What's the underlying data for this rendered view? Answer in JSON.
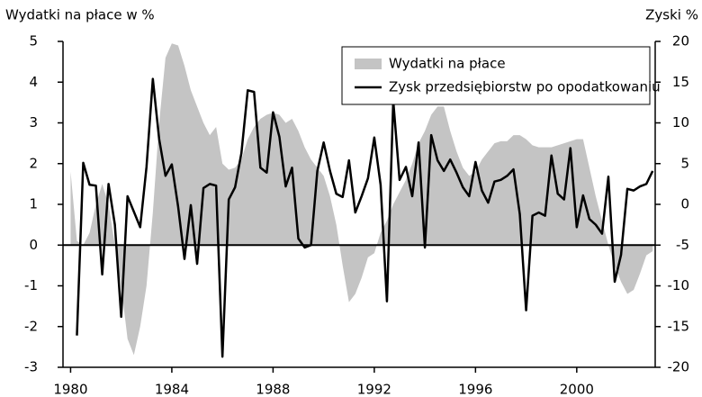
{
  "chart_data": {
    "type": "combo",
    "ylabel": "Wydatki na płace w %",
    "y2label": "Zyski %",
    "x": [
      1980,
      1980.25,
      1980.5,
      1980.75,
      1981,
      1981.25,
      1981.5,
      1981.75,
      1982,
      1982.25,
      1982.5,
      1982.75,
      1983,
      1983.25,
      1983.5,
      1983.75,
      1984,
      1984.25,
      1984.5,
      1984.75,
      1985,
      1985.25,
      1985.5,
      1985.75,
      1986,
      1986.25,
      1986.5,
      1986.75,
      1987,
      1987.25,
      1987.5,
      1987.75,
      1988,
      1988.25,
      1988.5,
      1988.75,
      1989,
      1989.25,
      1989.5,
      1989.75,
      1990,
      1990.25,
      1990.5,
      1990.75,
      1991,
      1991.25,
      1991.5,
      1991.75,
      1992,
      1992.25,
      1992.5,
      1992.75,
      1993,
      1993.25,
      1993.5,
      1993.75,
      1994,
      1994.25,
      1994.5,
      1994.75,
      1995,
      1995.25,
      1995.5,
      1995.75,
      1996,
      1996.25,
      1996.5,
      1996.75,
      1997,
      1997.25,
      1997.5,
      1997.75,
      1998,
      1998.25,
      1998.5,
      1998.75,
      1999,
      1999.25,
      1999.5,
      1999.75,
      2000,
      2000.25,
      2000.5,
      2000.75,
      2001,
      2001.25,
      2001.5,
      2001.75,
      2002,
      2002.25,
      2002.5,
      2002.75,
      2003
    ],
    "series": [
      {
        "name": "Wydatki na płace",
        "type": "area",
        "axis": "y",
        "color": "#c4c4c4",
        "values": [
          1.8,
          0.1,
          0,
          0.3,
          1.0,
          1.5,
          1.0,
          0.0,
          -1.0,
          -2.3,
          -2.7,
          -2.0,
          -1.0,
          0.8,
          3.0,
          4.6,
          4.95,
          4.9,
          4.4,
          3.8,
          3.4,
          3.0,
          2.7,
          2.9,
          2.0,
          1.85,
          1.9,
          2.1,
          2.6,
          2.9,
          3.1,
          3.2,
          3.25,
          3.2,
          3.0,
          3.1,
          2.8,
          2.4,
          2.1,
          1.9,
          1.7,
          1.2,
          0.5,
          -0.5,
          -1.4,
          -1.2,
          -0.8,
          -0.3,
          -0.2,
          0.3,
          0.6,
          1.0,
          1.3,
          1.6,
          2.0,
          2.5,
          2.8,
          3.2,
          3.4,
          3.4,
          2.8,
          2.3,
          1.9,
          1.7,
          1.8,
          2.1,
          2.3,
          2.5,
          2.55,
          2.55,
          2.7,
          2.7,
          2.6,
          2.45,
          2.4,
          2.4,
          2.4,
          2.45,
          2.5,
          2.55,
          2.6,
          2.6,
          1.9,
          1.2,
          0.6,
          0.0,
          -0.5,
          -0.9,
          -1.2,
          -1.1,
          -0.7,
          -0.25,
          -0.15
        ]
      },
      {
        "name": "Zysk przedsiębiorstw po opodatkowaniu",
        "type": "line",
        "axis": "y2",
        "color": "#000000",
        "values": [
          null,
          -16.1,
          5.1,
          2.4,
          2.3,
          -8.6,
          2.5,
          -2.5,
          -13.8,
          1.0,
          -0.9,
          -2.8,
          4.6,
          15.4,
          8.0,
          3.5,
          4.9,
          -0.3,
          -6.7,
          -0.1,
          -7.3,
          2.0,
          2.5,
          2.3,
          -18.7,
          0.6,
          2.1,
          6.3,
          14.0,
          13.8,
          4.5,
          3.9,
          11.3,
          8.3,
          2.2,
          4.5,
          -4.2,
          -5.3,
          -5.0,
          4.1,
          7.6,
          4.1,
          1.3,
          0.9,
          5.4,
          -1.0,
          1.0,
          3.2,
          8.2,
          2.4,
          -11.9,
          12.7,
          3.0,
          4.6,
          1.0,
          7.6,
          -5.3,
          8.5,
          5.4,
          4.1,
          5.5,
          3.9,
          2.1,
          1.0,
          5.2,
          1.7,
          0.2,
          2.8,
          3.0,
          3.5,
          4.3,
          -1.2,
          -13.0,
          -1.4,
          -1.0,
          -1.4,
          6.0,
          1.3,
          0.6,
          6.9,
          -2.8,
          1.1,
          -1.8,
          -2.5,
          -3.6,
          3.4,
          -9.5,
          -6.2,
          1.9,
          1.7,
          2.2,
          2.5,
          4.1
        ]
      }
    ],
    "xlim": [
      1979.7,
      2003.1
    ],
    "xticks": [
      1980,
      1984,
      1988,
      1992,
      1996,
      2000
    ],
    "ylim": [
      -3,
      5
    ],
    "yticks": [
      -3,
      -2,
      -1,
      0,
      1,
      2,
      3,
      4,
      5
    ],
    "y2lim": [
      -20,
      20
    ],
    "y2ticks": [
      -20,
      -15,
      -10,
      -5,
      0,
      5,
      10,
      15,
      20
    ],
    "legend": "upper right"
  }
}
